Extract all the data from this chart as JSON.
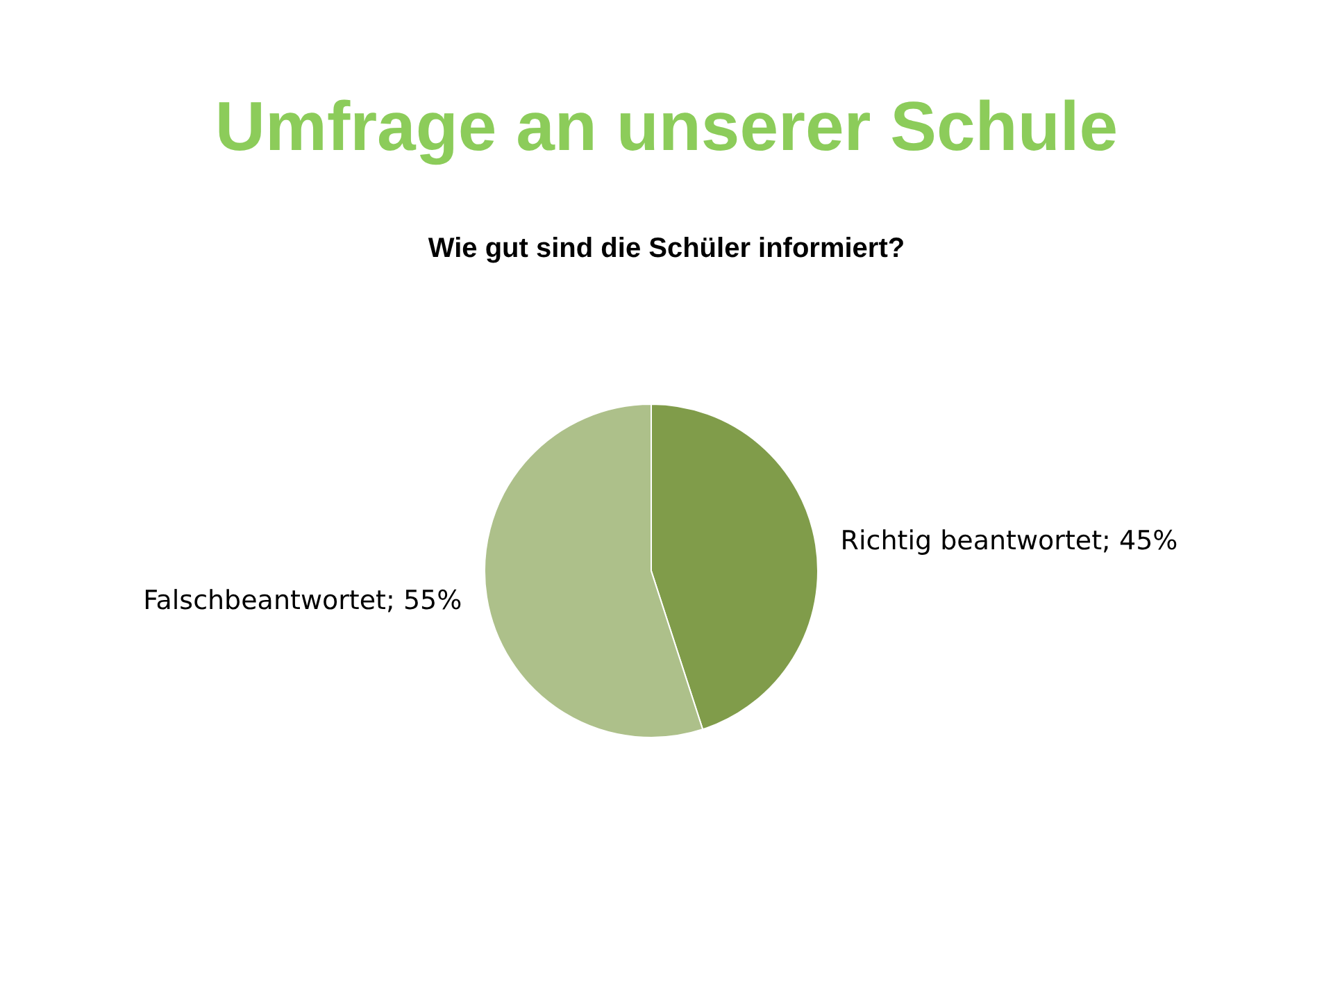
{
  "chart_data": {
    "type": "pie",
    "title": "Umfrage an unserer Schule",
    "subtitle": "Wie gut sind die Schüler informiert?",
    "categories": [
      "Richtig beantwortet",
      "Falschbeantwortet"
    ],
    "values": [
      45,
      55
    ],
    "colors": [
      "#809c4a",
      "#adc08a"
    ],
    "value_labels": [
      "45%",
      "55%"
    ],
    "legend": false
  }
}
